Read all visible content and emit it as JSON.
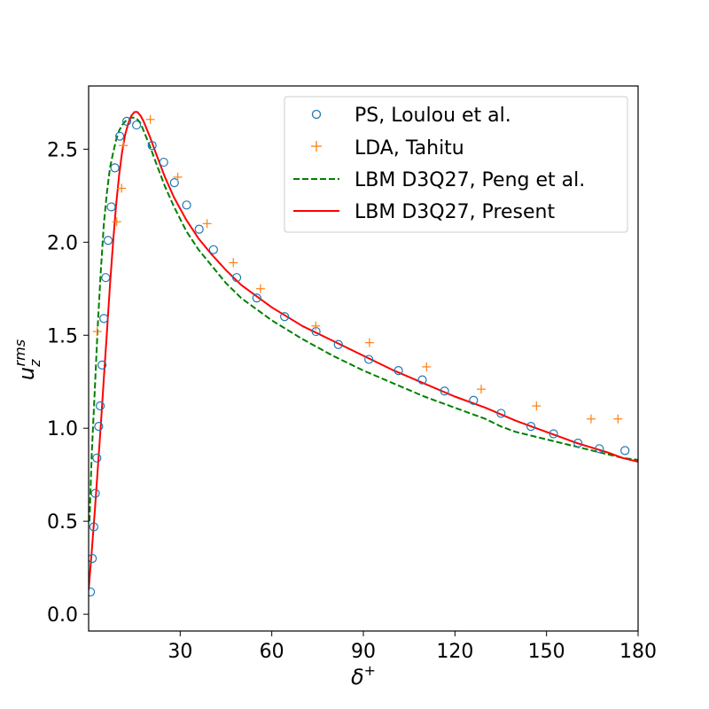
{
  "chart_data": {
    "type": "line",
    "title": "",
    "xlabel": "δ",
    "xlabel_sup": "+",
    "ylabel": "u",
    "ylabel_sub": "z",
    "ylabel_sup": "rms",
    "xlim": [
      0,
      180
    ],
    "ylim": [
      -0.09,
      2.84
    ],
    "xticks": [
      30,
      60,
      90,
      120,
      150,
      180
    ],
    "yticks": [
      0.0,
      0.5,
      1.0,
      1.5,
      2.0,
      2.5
    ],
    "xtick_labels": [
      "30",
      "60",
      "90",
      "120",
      "150",
      "180"
    ],
    "ytick_labels": [
      "0.0",
      "0.5",
      "1.0",
      "1.5",
      "2.0",
      "2.5"
    ],
    "grid": false,
    "legend_position": "top-right",
    "colors": {
      "ps": "#1f77b4",
      "lda": "#ff7f0e",
      "peng": "#008000",
      "present": "#ff0000"
    },
    "series": [
      {
        "name": "PS, Loulou et al.",
        "style": "circle-markers",
        "x": [
          0.6,
          1.2,
          1.7,
          2.2,
          2.7,
          3.3,
          3.8,
          4.4,
          5.0,
          5.6,
          6.4,
          7.4,
          8.6,
          10.2,
          12.5,
          15.7,
          20.8,
          24.6,
          28.1,
          32.1,
          36.2,
          40.9,
          48.5,
          55.1,
          64.2,
          74.5,
          81.8,
          91.8,
          101.5,
          109.3,
          116.6,
          126.1,
          135.1,
          144.9,
          152.3,
          160.3,
          167.3,
          175.7
        ],
        "y": [
          0.12,
          0.3,
          0.47,
          0.65,
          0.84,
          1.01,
          1.12,
          1.34,
          1.59,
          1.81,
          2.01,
          2.19,
          2.4,
          2.57,
          2.65,
          2.63,
          2.52,
          2.43,
          2.32,
          2.2,
          2.07,
          1.96,
          1.81,
          1.7,
          1.6,
          1.52,
          1.45,
          1.37,
          1.31,
          1.26,
          1.2,
          1.15,
          1.08,
          1.01,
          0.97,
          0.92,
          0.89,
          0.88
        ]
      },
      {
        "name": "LDA, Tahitu",
        "style": "plus-markers",
        "x": [
          2.8,
          9.2,
          10.8,
          11.4,
          20.2,
          29.2,
          38.8,
          47.4,
          56.3,
          74.4,
          92.0,
          110.7,
          128.6,
          146.7,
          164.6,
          173.4
        ],
        "y": [
          1.52,
          2.11,
          2.29,
          2.52,
          2.66,
          2.35,
          2.1,
          1.89,
          1.75,
          1.55,
          1.46,
          1.33,
          1.21,
          1.12,
          1.05,
          1.05
        ]
      },
      {
        "name": "LBM D3Q27, Peng et al.",
        "style": "dashed-line",
        "x": [
          0.3,
          1,
          2,
          3,
          4,
          5,
          6,
          7,
          8,
          9,
          10,
          11,
          12,
          13,
          14,
          15,
          16,
          17,
          18,
          19,
          20,
          22,
          25,
          28,
          32,
          36,
          40,
          45,
          50,
          55,
          60,
          70,
          80,
          90,
          100,
          110,
          120,
          130,
          135,
          140,
          150,
          160,
          170,
          175,
          180
        ],
        "y": [
          0.5,
          0.85,
          1.2,
          1.55,
          1.85,
          2.1,
          2.27,
          2.4,
          2.48,
          2.55,
          2.6,
          2.63,
          2.65,
          2.66,
          2.67,
          2.67,
          2.66,
          2.64,
          2.6,
          2.56,
          2.52,
          2.43,
          2.3,
          2.19,
          2.06,
          1.96,
          1.88,
          1.78,
          1.7,
          1.64,
          1.58,
          1.48,
          1.39,
          1.31,
          1.24,
          1.17,
          1.11,
          1.05,
          1.01,
          0.98,
          0.94,
          0.9,
          0.86,
          0.84,
          0.83
        ]
      },
      {
        "name": "LBM D3Q27, Present",
        "style": "solid-line",
        "x": [
          0,
          1,
          2,
          3,
          4,
          5,
          6,
          7,
          8,
          9,
          10,
          11,
          12,
          13,
          14,
          15,
          16,
          17,
          18,
          19,
          20,
          22,
          25,
          28,
          32,
          36,
          40,
          45,
          50,
          55,
          60,
          70,
          80,
          90,
          100,
          110,
          120,
          130,
          140,
          150,
          160,
          170,
          175,
          180
        ],
        "y": [
          0.13,
          0.33,
          0.55,
          0.78,
          1.02,
          1.27,
          1.52,
          1.77,
          2.0,
          2.2,
          2.36,
          2.49,
          2.58,
          2.64,
          2.68,
          2.7,
          2.7,
          2.68,
          2.65,
          2.61,
          2.57,
          2.48,
          2.35,
          2.24,
          2.12,
          2.02,
          1.94,
          1.85,
          1.77,
          1.71,
          1.65,
          1.55,
          1.47,
          1.39,
          1.31,
          1.24,
          1.17,
          1.11,
          1.04,
          0.98,
          0.92,
          0.87,
          0.84,
          0.82
        ]
      }
    ]
  }
}
